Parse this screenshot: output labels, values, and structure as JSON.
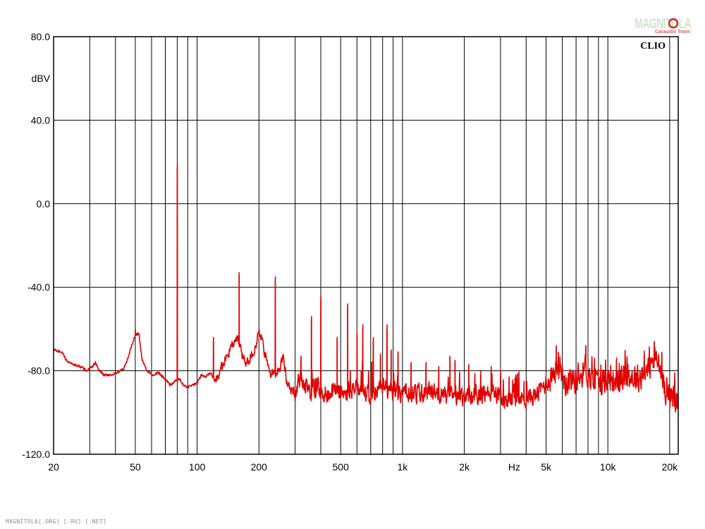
{
  "chart_data": {
    "type": "line",
    "x_scale": "log",
    "xlim": [
      20,
      22000
    ],
    "ylim": [
      -120,
      80
    ],
    "ylabel": "dBV",
    "xlabel": "Hz",
    "grid": true,
    "y_ticks": [
      80,
      40,
      0,
      -40,
      -80,
      -120
    ],
    "y_tick_labels": [
      "80.0",
      "40.0",
      "0.0",
      "-40.0",
      "-80.0",
      "-120.0"
    ],
    "x_ticks": [
      {
        "value": 20,
        "label": "20"
      },
      {
        "value": 50,
        "label": "50"
      },
      {
        "value": 100,
        "label": "100"
      },
      {
        "value": 200,
        "label": "200"
      },
      {
        "value": 500,
        "label": "500"
      },
      {
        "value": 1000,
        "label": "1k"
      },
      {
        "value": 2000,
        "label": "2k"
      },
      {
        "value": 3500,
        "label": "Hz"
      },
      {
        "value": 5000,
        "label": "5k"
      },
      {
        "value": 10000,
        "label": "10k"
      },
      {
        "value": 20000,
        "label": "20k"
      }
    ],
    "x_gridlines": [
      30,
      40,
      50,
      60,
      70,
      80,
      90,
      100,
      200,
      300,
      400,
      500,
      600,
      700,
      800,
      900,
      1000,
      2000,
      3000,
      4000,
      5000,
      6000,
      7000,
      8000,
      9000,
      10000,
      20000
    ],
    "series": [
      {
        "color": "#e00000",
        "baseline": [
          [
            20,
            -70
          ],
          [
            22,
            -71
          ],
          [
            23,
            -75
          ],
          [
            25,
            -77
          ],
          [
            27,
            -78
          ],
          [
            29,
            -80
          ],
          [
            31,
            -78
          ],
          [
            32,
            -76
          ],
          [
            33,
            -79
          ],
          [
            35,
            -82
          ],
          [
            38,
            -82
          ],
          [
            41,
            -81
          ],
          [
            44,
            -79
          ],
          [
            46,
            -74
          ],
          [
            48,
            -68
          ],
          [
            50,
            -63
          ],
          [
            52,
            -62
          ],
          [
            54,
            -75
          ],
          [
            57,
            -80
          ],
          [
            61,
            -82
          ],
          [
            65,
            -81
          ],
          [
            70,
            -84
          ],
          [
            74,
            -87
          ],
          [
            78,
            -85
          ],
          [
            82,
            -84
          ],
          [
            88,
            -88
          ],
          [
            95,
            -87
          ],
          [
            100,
            -86
          ],
          [
            105,
            -82
          ],
          [
            110,
            -83
          ],
          [
            116,
            -81
          ],
          [
            123,
            -85
          ],
          [
            130,
            -79
          ],
          [
            138,
            -74
          ],
          [
            145,
            -70
          ],
          [
            152,
            -66
          ],
          [
            158,
            -65
          ],
          [
            165,
            -72
          ],
          [
            172,
            -76
          ],
          [
            180,
            -74
          ],
          [
            190,
            -70
          ],
          [
            200,
            -62
          ],
          [
            208,
            -66
          ],
          [
            218,
            -76
          ],
          [
            230,
            -82
          ],
          [
            245,
            -80
          ],
          [
            255,
            -78
          ],
          [
            262,
            -72
          ],
          [
            272,
            -84
          ],
          [
            285,
            -90
          ],
          [
            300,
            -90
          ],
          [
            315,
            -84
          ],
          [
            330,
            -86
          ],
          [
            350,
            -90
          ],
          [
            380,
            -88
          ],
          [
            420,
            -91
          ],
          [
            470,
            -89
          ],
          [
            520,
            -91
          ],
          [
            600,
            -89
          ],
          [
            700,
            -91
          ],
          [
            800,
            -88
          ],
          [
            900,
            -90
          ],
          [
            1000,
            -90
          ],
          [
            1200,
            -91
          ],
          [
            1400,
            -90
          ],
          [
            1700,
            -92
          ],
          [
            2000,
            -93
          ],
          [
            2400,
            -91
          ],
          [
            2800,
            -91
          ],
          [
            3200,
            -94
          ],
          [
            3600,
            -94
          ],
          [
            4000,
            -93
          ],
          [
            4400,
            -92
          ],
          [
            4800,
            -88
          ],
          [
            5200,
            -84
          ],
          [
            5500,
            -80
          ],
          [
            5800,
            -76
          ],
          [
            6200,
            -85
          ],
          [
            6800,
            -84
          ],
          [
            7400,
            -82
          ],
          [
            7800,
            -78
          ],
          [
            8200,
            -84
          ],
          [
            9000,
            -85
          ],
          [
            10000,
            -84
          ],
          [
            11000,
            -84
          ],
          [
            12500,
            -83
          ],
          [
            14000,
            -83
          ],
          [
            15500,
            -80
          ],
          [
            16500,
            -76
          ],
          [
            17200,
            -74
          ],
          [
            18000,
            -80
          ],
          [
            19000,
            -88
          ],
          [
            20000,
            -92
          ],
          [
            22000,
            -95
          ]
        ],
        "peaks": [
          [
            50,
            -62
          ],
          [
            80,
            17
          ],
          [
            120,
            -66
          ],
          [
            160,
            -35
          ],
          [
            200,
            -62
          ],
          [
            240,
            -37
          ],
          [
            320,
            -75
          ],
          [
            360,
            -56
          ],
          [
            400,
            -46
          ],
          [
            480,
            -66
          ],
          [
            540,
            -50
          ],
          [
            600,
            -64
          ],
          [
            640,
            -60
          ],
          [
            720,
            -66
          ],
          [
            780,
            -74
          ],
          [
            840,
            -60
          ],
          [
            880,
            -72
          ],
          [
            950,
            -73
          ],
          [
            1100,
            -78
          ],
          [
            1300,
            -78
          ],
          [
            1500,
            -80
          ],
          [
            1700,
            -75
          ],
          [
            1800,
            -77
          ],
          [
            2100,
            -79
          ],
          [
            2400,
            -82
          ],
          [
            2700,
            -80
          ],
          [
            3000,
            -82
          ],
          [
            3300,
            -85
          ],
          [
            3900,
            -87
          ],
          [
            5600,
            -70
          ],
          [
            7800,
            -70
          ],
          [
            8600,
            -76
          ],
          [
            11000,
            -76
          ],
          [
            12500,
            -79
          ],
          [
            16800,
            -68
          ]
        ]
      }
    ]
  },
  "annotations": {
    "brand": "CLIO",
    "logo_text": "MAGNITOLA",
    "logo_sub": "Caraudio Team"
  },
  "footer": {
    "text": "MAGNITOLA[.ORG] [.RU] [.NET]"
  }
}
